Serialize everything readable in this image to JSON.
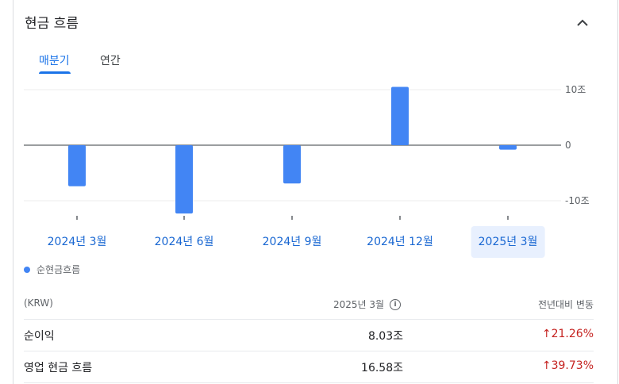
{
  "header": {
    "title": "현금 흐름"
  },
  "tabs": [
    {
      "label": "매분기",
      "selected": true
    },
    {
      "label": "연간",
      "selected": false
    }
  ],
  "chart_data": {
    "type": "bar",
    "categories": [
      "2024년 3월",
      "2024년 6월",
      "2024년 9월",
      "2024년 12월",
      "2025년 3월"
    ],
    "series": [
      {
        "name": "순현금흐름",
        "color": "#4285f4",
        "values": [
          -7.4,
          -12.3,
          -6.9,
          10.5,
          -0.8
        ]
      }
    ],
    "ylim": [
      -10,
      10
    ],
    "y_ticks": [
      {
        "value": 10,
        "label": "10조"
      },
      {
        "value": 0,
        "label": "0"
      },
      {
        "value": -10,
        "label": "-10조"
      }
    ],
    "selected_category": "2025년 3월"
  },
  "legend": {
    "label": "순현금흐름"
  },
  "table": {
    "currency": "(KRW)",
    "current_period": "2025년 3월",
    "change_header": "전년대비 변동",
    "rows": [
      {
        "label": "순이익",
        "value": "8.03조",
        "change": "21.26%",
        "direction": "up"
      },
      {
        "label": "영업 현금 흐름",
        "value": "16.58조",
        "change": "39.73%",
        "direction": "up"
      }
    ]
  },
  "colors": {
    "accent": "#1a73e8",
    "bar": "#4285f4",
    "negative_change": "#c5221f"
  }
}
